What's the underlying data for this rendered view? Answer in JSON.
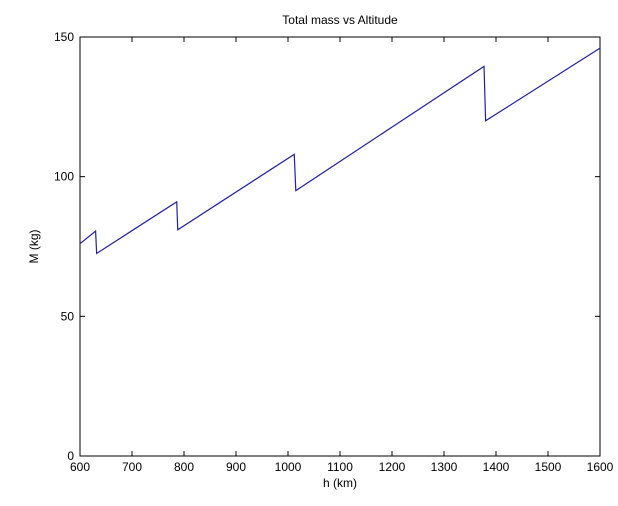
{
  "chart_data": {
    "type": "line",
    "title": "Total mass vs Altitude",
    "xlabel": "h (km)",
    "ylabel": "M (kg)",
    "xlim": [
      600,
      1600
    ],
    "ylim": [
      0,
      150
    ],
    "xticks": [
      600,
      700,
      800,
      900,
      1000,
      1100,
      1200,
      1300,
      1400,
      1500,
      1600
    ],
    "yticks": [
      0,
      50,
      100,
      150
    ],
    "grid": false,
    "legend": "none",
    "series": [
      {
        "color": "#1f1fa8",
        "x": [
          600,
          630,
          632,
          786,
          788,
          1012,
          1015,
          1377,
          1380,
          1600
        ],
        "y": [
          76,
          80.5,
          72.5,
          91,
          81,
          108,
          95,
          139.5,
          120,
          146
        ]
      }
    ]
  }
}
